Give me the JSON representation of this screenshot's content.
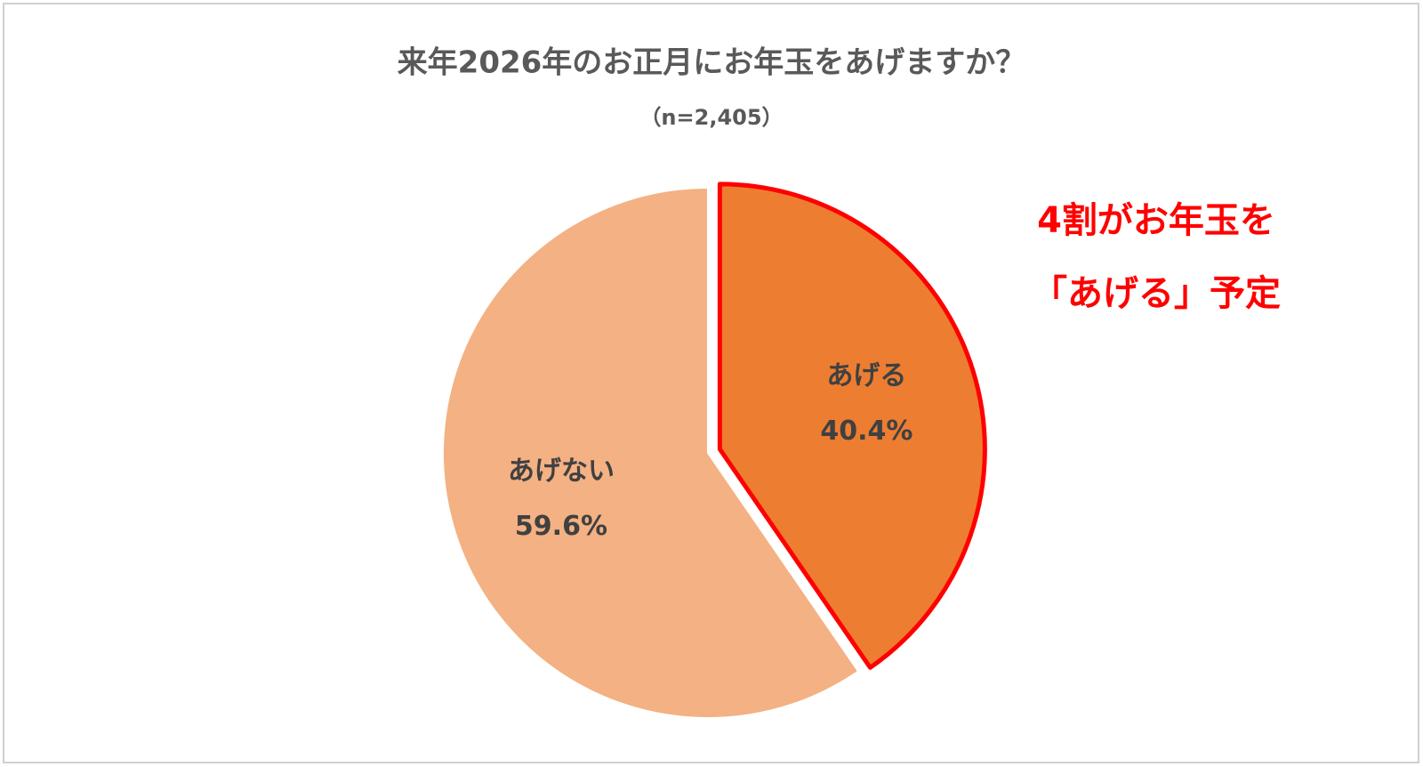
{
  "chart_data": {
    "type": "pie",
    "title": "来年2026年のお正月にお年玉をあげますか？",
    "subtitle": "（n=2,405）",
    "categories": [
      "あげる",
      "あげない"
    ],
    "values": [
      40.4,
      59.6
    ],
    "value_labels": [
      "40.4%",
      "59.6%"
    ],
    "colors": [
      "#ed7d31",
      "#f4b183"
    ],
    "exploded": [
      0
    ],
    "highlight_color": "#ff0000",
    "annotation": [
      "4割がお年玉を",
      "「あげる」予定"
    ]
  }
}
